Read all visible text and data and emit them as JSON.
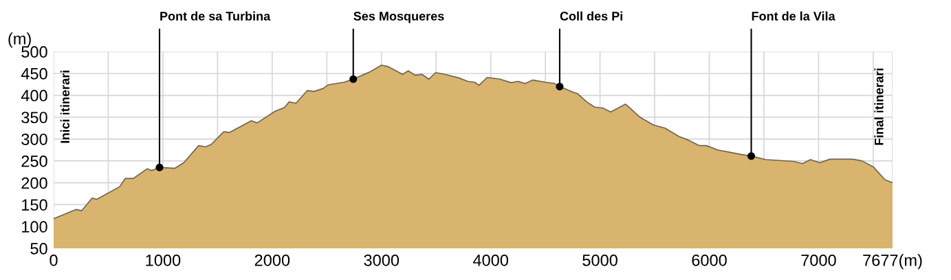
{
  "chart_data": {
    "type": "area",
    "ylabel": "(m)",
    "x": [
      0,
      205,
      257,
      352,
      394,
      604,
      656,
      730,
      855,
      897,
      969,
      1107,
      1191,
      1327,
      1390,
      1443,
      1558,
      1610,
      1809,
      1862,
      2029,
      2113,
      2155,
      2218,
      2322,
      2385,
      2469,
      2512,
      2659,
      2742,
      2889,
      3000,
      3057,
      3140,
      3193,
      3245,
      3308,
      3370,
      3433,
      3496,
      3580,
      3706,
      3790,
      3852,
      3894,
      3967,
      4083,
      4187,
      4250,
      4313,
      4386,
      4501,
      4585,
      4631,
      4753,
      4795,
      4878,
      4952,
      5025,
      5098,
      5234,
      5300,
      5360,
      5386,
      5491,
      5595,
      5721,
      5805,
      5910,
      5973,
      6078,
      6182,
      6287,
      6384,
      6518,
      6643,
      6769,
      6853,
      6926,
      7010,
      7105,
      7314,
      7398,
      7503,
      7607,
      7677
    ],
    "series": [
      {
        "color": "#d9b46e",
        "values": [
          118,
          139,
          136,
          165,
          162,
          191,
          210,
          210,
          232,
          228,
          235,
          233,
          246,
          285,
          282,
          288,
          317,
          315,
          342,
          337,
          364,
          372,
          385,
          382,
          411,
          409,
          416,
          424,
          430,
          437,
          453,
          469,
          466,
          455,
          448,
          456,
          446,
          448,
          437,
          452,
          448,
          440,
          432,
          430,
          423,
          441,
          437,
          429,
          432,
          427,
          435,
          430,
          427,
          420,
          407,
          404,
          385,
          373,
          371,
          362,
          380,
          365,
          351,
          347,
          332,
          325,
          306,
          298,
          285,
          285,
          275,
          270,
          265,
          261,
          253,
          251,
          249,
          244,
          253,
          246,
          254,
          254,
          250,
          236,
          207,
          200
        ]
      }
    ],
    "xlim": [
      0,
      7677
    ],
    "ylim": [
      50,
      500
    ],
    "xticks": [
      0,
      {
        "value": 500,
        "label": null
      },
      1000,
      {
        "value": 1500,
        "label": null
      },
      2000,
      {
        "value": 2500,
        "label": null
      },
      3000,
      {
        "value": 3500,
        "label": null
      },
      4000,
      {
        "value": 4500,
        "label": null
      },
      5000,
      {
        "value": 5500,
        "label": null
      },
      6000,
      {
        "value": 6500,
        "label": null
      },
      7000,
      {
        "value": 7500,
        "label": null
      },
      {
        "value": 7677,
        "label": "7677(m)"
      }
    ],
    "yticks": [
      50,
      100,
      150,
      200,
      250,
      300,
      350,
      400,
      450,
      500
    ],
    "grid": true,
    "annotations": [
      {
        "text": "Pont de sa Turbina",
        "x": 969,
        "y": 235
      },
      {
        "text": "Ses Mosqueres",
        "x": 2742,
        "y": 437
      },
      {
        "text": "Coll des Pi",
        "x": 4631,
        "y": 420
      },
      {
        "text": "Font de la Vila",
        "x": 6384,
        "y": 261
      },
      "Inici itinerari",
      "Final itinerari"
    ]
  }
}
